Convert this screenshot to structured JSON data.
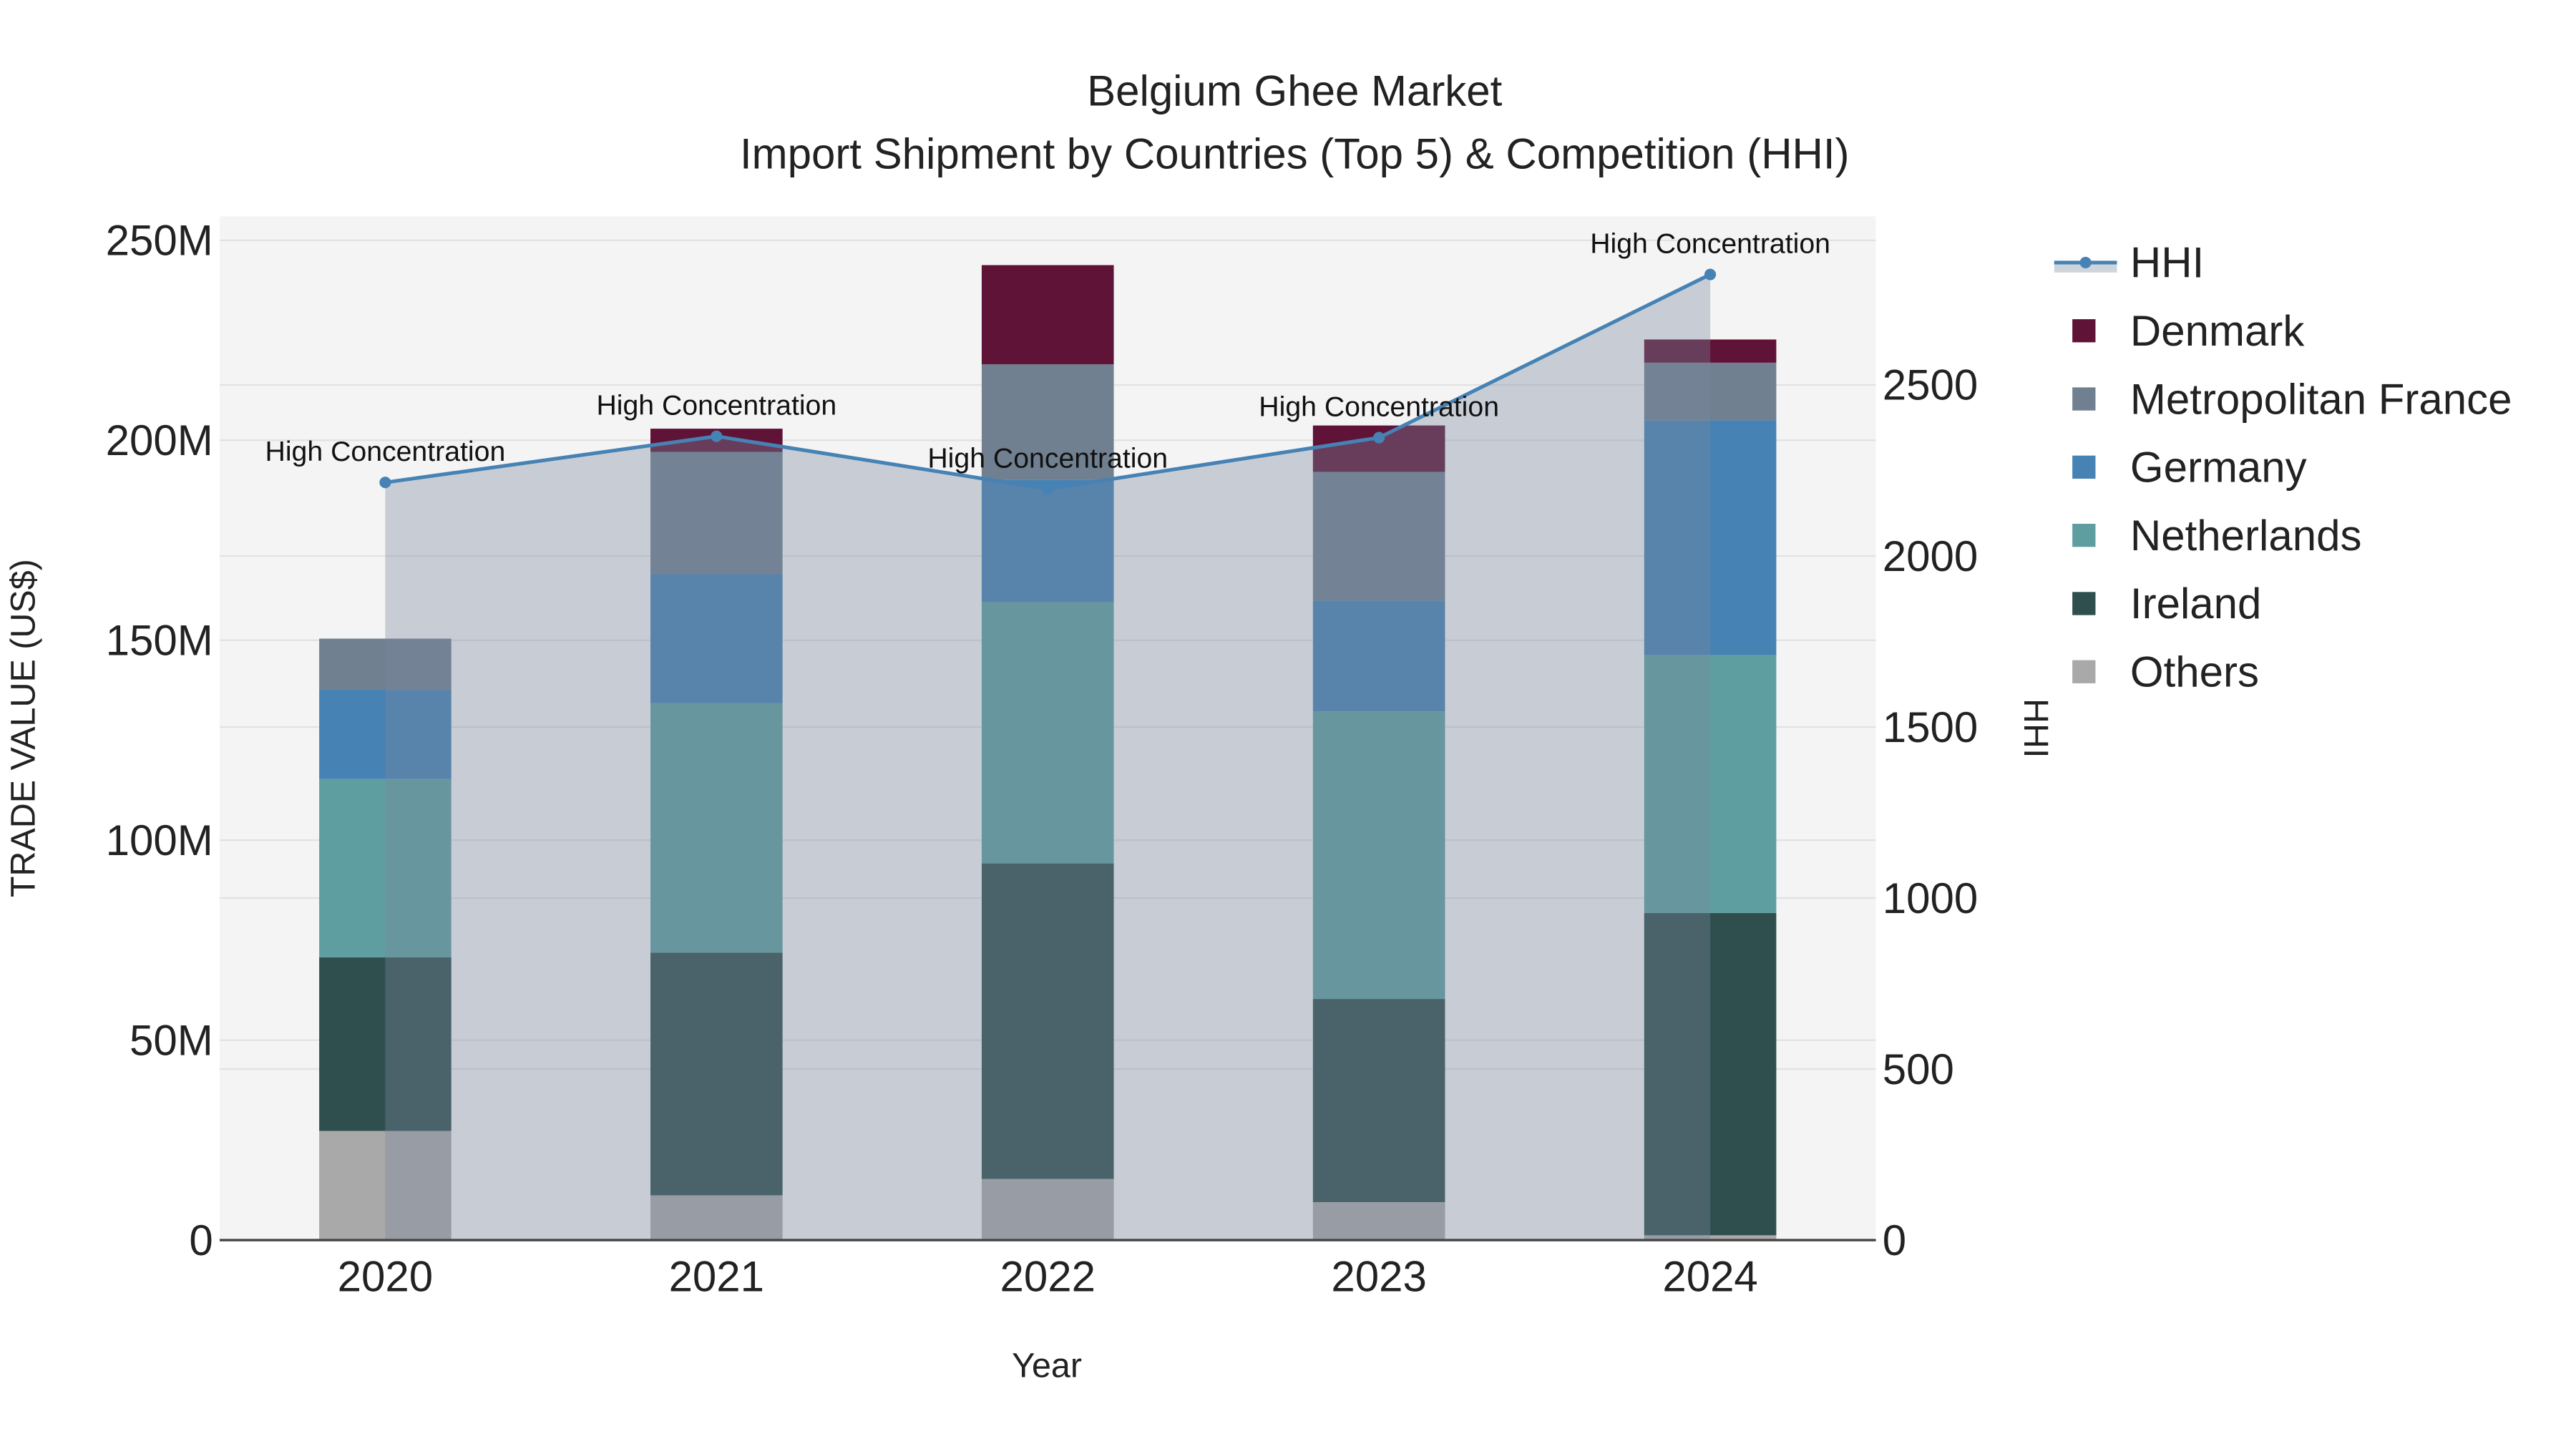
{
  "chart_data": {
    "type": "bar",
    "stacked": true,
    "title": "Belgium Ghee Market",
    "subtitle": "Import Shipment by Countries (Top 5) & Competition (HHI)",
    "xlabel": "Year",
    "ylabel": "TRADE VALUE (US$)",
    "y2label": "HHI",
    "categories": [
      "2020",
      "2021",
      "2022",
      "2023",
      "2024"
    ],
    "ylim": [
      0,
      256000000
    ],
    "y_ticks": [
      0,
      50000000,
      100000000,
      150000000,
      200000000,
      250000000
    ],
    "y_tick_labels": [
      "0",
      "50M",
      "100M",
      "150M",
      "200M",
      "250M"
    ],
    "y2lim": [
      0,
      2993
    ],
    "y2_ticks": [
      0,
      500,
      1000,
      1500,
      2000,
      2500
    ],
    "y2_tick_labels": [
      "0",
      "500",
      "1000",
      "1500",
      "2000",
      "2500"
    ],
    "grid": true,
    "legend_position": "right",
    "series": [
      {
        "name": "Others",
        "color": "#a9a9a9",
        "values": [
          27300000,
          11200000,
          15300000,
          9500000,
          1200000
        ]
      },
      {
        "name": "Ireland",
        "color": "#2f4f4f",
        "values": [
          43400000,
          60700000,
          78900000,
          50800000,
          80600000
        ]
      },
      {
        "name": "Netherlands",
        "color": "#5f9ea0",
        "values": [
          44600000,
          62400000,
          65300000,
          71900000,
          64500000
        ]
      },
      {
        "name": "Germany",
        "color": "#4682b4",
        "values": [
          22300000,
          32200000,
          30600000,
          27700000,
          58700000
        ]
      },
      {
        "name": "Metropolitan France",
        "color": "#708090",
        "values": [
          12800000,
          30600000,
          28900000,
          32200000,
          14400000
        ]
      },
      {
        "name": "Denmark",
        "color": "#5f1336",
        "values": [
          0,
          5800000,
          24800000,
          11600000,
          5800000
        ]
      }
    ],
    "hhi": {
      "name": "HHI",
      "color": "#4682b4",
      "values": [
        2215,
        2350,
        2196,
        2346,
        2823
      ],
      "annotations": [
        "High Concentration",
        "High Concentration",
        "High Concentration",
        "High Concentration",
        "High Concentration"
      ]
    },
    "legend_order": [
      "HHI",
      "Denmark",
      "Metropolitan France",
      "Germany",
      "Netherlands",
      "Ireland",
      "Others"
    ]
  }
}
